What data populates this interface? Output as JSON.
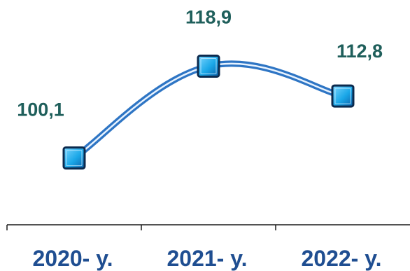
{
  "chart_data": {
    "type": "line",
    "categories": [
      "2020- y.",
      "2021- y.",
      "2022- y."
    ],
    "series": [
      {
        "values": [
          100.1,
          118.9,
          112.8
        ]
      }
    ],
    "data_labels": [
      "100,1",
      "118,9",
      "112,8"
    ],
    "title": "",
    "xlabel": "",
    "ylabel": "",
    "ylim": [
      90,
      125
    ],
    "grid": false,
    "legend": "none",
    "marker": "square",
    "smooth": true,
    "colors": {
      "line": "#2e75c4",
      "line_highlight": "#e8f3ff",
      "marker_fill": "#1aa7e8",
      "marker_border": "#0b2a4e",
      "data_label": "#1f5f5b",
      "tick_label": "#1f4e91",
      "axis": "#1a1a1a"
    }
  }
}
